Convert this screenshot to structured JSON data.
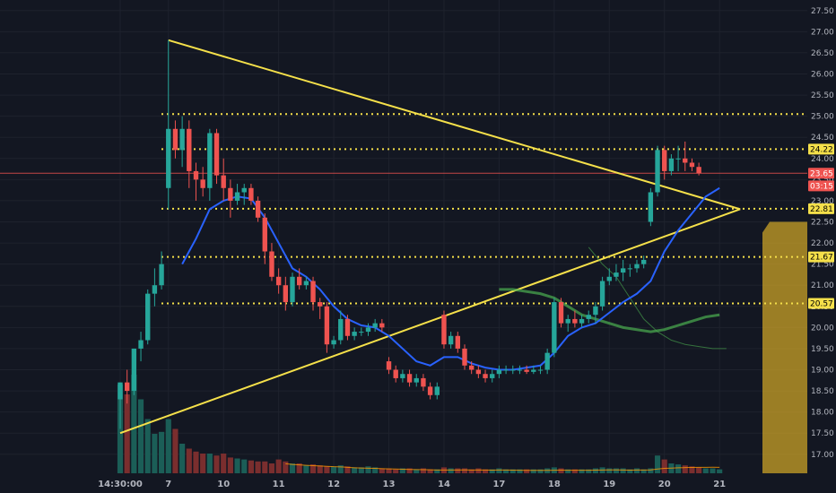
{
  "chart_data": {
    "type": "candlestick",
    "colors": {
      "background": "#131722",
      "grid": "#1e222d",
      "up": "#26a69a",
      "down": "#ef5350",
      "up_volume": "#1b5e57",
      "down_volume": "#7a2e2e",
      "ma_fast": "#2962ff",
      "ma_slow": "#4caf50",
      "trendline": "#f5e04a",
      "level": "#f5e04a",
      "price_line": "#ef5350",
      "volume_ma": "#ff9800"
    },
    "y_axis": {
      "ylim": [
        16.55,
        27.75
      ],
      "ticks": [
        "17.00",
        "17.50",
        "18.00",
        "18.50",
        "19.00",
        "19.50",
        "20.00",
        "20.50",
        "21.00",
        "21.50",
        "22.00",
        "22.50",
        "23.00",
        "23.50",
        "24.00",
        "24.50",
        "25.00",
        "25.50",
        "26.00",
        "26.50",
        "27.00",
        "27.50"
      ]
    },
    "x_axis": {
      "labels": [
        {
          "i": 0,
          "text": "14:30:00"
        },
        {
          "i": 7,
          "text": "7"
        },
        {
          "i": 15,
          "text": "10"
        },
        {
          "i": 23,
          "text": "11"
        },
        {
          "i": 31,
          "text": "12"
        },
        {
          "i": 39,
          "text": "13"
        },
        {
          "i": 47,
          "text": "14"
        },
        {
          "i": 55,
          "text": "17"
        },
        {
          "i": 63,
          "text": "18"
        },
        {
          "i": 71,
          "text": "19"
        },
        {
          "i": 79,
          "text": "20"
        },
        {
          "i": 87,
          "text": "21"
        }
      ]
    },
    "candles": [
      [
        18.3,
        18.7,
        17.6,
        18.7
      ],
      [
        18.7,
        19.0,
        18.2,
        18.5
      ],
      [
        18.5,
        19.5,
        18.4,
        19.5
      ],
      [
        19.5,
        19.9,
        19.2,
        19.7
      ],
      [
        19.7,
        20.9,
        19.6,
        20.8
      ],
      [
        20.8,
        21.4,
        20.5,
        21.0
      ],
      [
        21.0,
        21.8,
        20.9,
        21.5
      ],
      [
        23.3,
        26.8,
        22.8,
        24.7
      ],
      [
        24.7,
        24.9,
        24.0,
        24.2
      ],
      [
        24.2,
        25.0,
        23.8,
        24.7
      ],
      [
        24.7,
        24.9,
        23.3,
        23.7
      ],
      [
        23.7,
        23.9,
        23.0,
        23.5
      ],
      [
        23.5,
        23.8,
        23.1,
        23.3
      ],
      [
        23.3,
        24.7,
        23.0,
        24.6
      ],
      [
        24.6,
        24.7,
        23.4,
        23.6
      ],
      [
        23.6,
        24.0,
        23.0,
        23.3
      ],
      [
        23.3,
        23.5,
        22.6,
        23.0
      ],
      [
        23.0,
        23.4,
        22.9,
        23.2
      ],
      [
        23.2,
        23.4,
        22.9,
        23.3
      ],
      [
        23.3,
        23.4,
        22.9,
        23.0
      ],
      [
        23.0,
        23.1,
        22.5,
        22.6
      ],
      [
        22.6,
        22.7,
        21.5,
        21.8
      ],
      [
        21.8,
        22.0,
        21.1,
        21.2
      ],
      [
        21.2,
        21.4,
        20.8,
        21.0
      ],
      [
        21.0,
        21.2,
        20.4,
        20.6
      ],
      [
        20.6,
        21.3,
        20.5,
        21.2
      ],
      [
        21.2,
        21.4,
        20.9,
        21.0
      ],
      [
        21.0,
        21.2,
        20.9,
        21.1
      ],
      [
        21.1,
        21.2,
        20.4,
        20.6
      ],
      [
        20.6,
        20.7,
        20.2,
        20.5
      ],
      [
        20.5,
        20.6,
        19.4,
        19.6
      ],
      [
        19.6,
        19.8,
        19.5,
        19.7
      ],
      [
        19.7,
        20.4,
        19.6,
        20.2
      ],
      [
        20.2,
        20.3,
        19.7,
        19.8
      ],
      [
        19.8,
        20.0,
        19.7,
        19.9
      ],
      [
        19.9,
        20.0,
        19.8,
        19.9
      ],
      [
        19.9,
        20.1,
        19.8,
        20.0
      ],
      [
        20.0,
        20.2,
        19.9,
        20.1
      ],
      [
        20.1,
        20.2,
        19.9,
        20.0
      ],
      [
        19.2,
        19.3,
        18.9,
        19.0
      ],
      [
        19.0,
        19.1,
        18.7,
        18.8
      ],
      [
        18.8,
        19.0,
        18.7,
        18.9
      ],
      [
        18.9,
        19.0,
        18.6,
        18.7
      ],
      [
        18.7,
        18.9,
        18.6,
        18.8
      ],
      [
        18.8,
        18.9,
        18.5,
        18.6
      ],
      [
        18.6,
        18.7,
        18.3,
        18.4
      ],
      [
        18.4,
        18.7,
        18.3,
        18.6
      ],
      [
        20.3,
        20.4,
        19.5,
        19.6
      ],
      [
        19.6,
        19.9,
        19.5,
        19.8
      ],
      [
        19.8,
        19.9,
        19.4,
        19.5
      ],
      [
        19.5,
        19.6,
        19.0,
        19.1
      ],
      [
        19.1,
        19.2,
        18.9,
        19.0
      ],
      [
        19.0,
        19.1,
        18.8,
        18.9
      ],
      [
        18.9,
        19.0,
        18.7,
        18.8
      ],
      [
        18.8,
        19.0,
        18.7,
        18.9
      ],
      [
        18.9,
        19.1,
        18.8,
        19.0
      ],
      [
        19.0,
        19.1,
        18.9,
        19.0
      ],
      [
        19.0,
        19.1,
        18.9,
        19.0
      ],
      [
        19.0,
        19.1,
        18.9,
        19.0
      ],
      [
        19.0,
        19.1,
        18.9,
        18.95
      ],
      [
        18.95,
        19.1,
        18.9,
        19.0
      ],
      [
        19.0,
        19.1,
        18.9,
        19.0
      ],
      [
        19.0,
        19.5,
        18.9,
        19.4
      ],
      [
        19.4,
        20.7,
        19.3,
        20.6
      ],
      [
        20.6,
        20.7,
        20.0,
        20.1
      ],
      [
        20.1,
        20.3,
        19.9,
        20.2
      ],
      [
        20.2,
        20.4,
        20.0,
        20.1
      ],
      [
        20.1,
        20.3,
        20.0,
        20.2
      ],
      [
        20.2,
        20.4,
        20.1,
        20.3
      ],
      [
        20.3,
        20.6,
        20.1,
        20.5
      ],
      [
        20.5,
        21.2,
        20.4,
        21.1
      ],
      [
        21.1,
        21.4,
        21.0,
        21.2
      ],
      [
        21.2,
        21.5,
        21.1,
        21.3
      ],
      [
        21.3,
        21.6,
        21.1,
        21.4
      ],
      [
        21.4,
        21.5,
        21.2,
        21.4
      ],
      [
        21.4,
        21.6,
        21.3,
        21.5
      ],
      [
        21.5,
        21.7,
        21.4,
        21.6
      ],
      [
        22.5,
        23.3,
        22.4,
        23.2
      ],
      [
        23.2,
        24.3,
        23.1,
        24.2
      ],
      [
        24.2,
        24.3,
        23.5,
        23.7
      ],
      [
        23.7,
        24.1,
        23.6,
        24.0
      ],
      [
        24.0,
        24.3,
        23.7,
        24.0
      ],
      [
        24.0,
        24.4,
        23.7,
        23.9
      ],
      [
        23.9,
        24.0,
        23.7,
        23.8
      ],
      [
        23.8,
        23.9,
        23.6,
        23.65
      ]
    ],
    "volumes": [
      0.9,
      0.8,
      1.0,
      0.75,
      0.55,
      0.4,
      0.42,
      0.55,
      0.45,
      0.3,
      0.25,
      0.22,
      0.2,
      0.2,
      0.18,
      0.2,
      0.16,
      0.15,
      0.14,
      0.13,
      0.12,
      0.12,
      0.1,
      0.14,
      0.12,
      0.1,
      0.1,
      0.08,
      0.09,
      0.08,
      0.07,
      0.07,
      0.08,
      0.07,
      0.06,
      0.06,
      0.07,
      0.06,
      0.05,
      0.05,
      0.04,
      0.05,
      0.05,
      0.04,
      0.05,
      0.04,
      0.04,
      0.06,
      0.05,
      0.05,
      0.05,
      0.04,
      0.05,
      0.04,
      0.04,
      0.05,
      0.04,
      0.04,
      0.04,
      0.04,
      0.04,
      0.04,
      0.05,
      0.06,
      0.05,
      0.04,
      0.04,
      0.04,
      0.04,
      0.05,
      0.06,
      0.05,
      0.05,
      0.05,
      0.04,
      0.05,
      0.04,
      0.05,
      0.18,
      0.14,
      0.1,
      0.09,
      0.08,
      0.07,
      0.06,
      0.05,
      0.05,
      0.04
    ],
    "ma_fast": [
      [
        9,
        21.5
      ],
      [
        11,
        22.1
      ],
      [
        13,
        22.8
      ],
      [
        15,
        23.0
      ],
      [
        17,
        23.1
      ],
      [
        19,
        23.05
      ],
      [
        21,
        22.6
      ],
      [
        23,
        22.0
      ],
      [
        25,
        21.4
      ],
      [
        27,
        21.2
      ],
      [
        29,
        20.9
      ],
      [
        31,
        20.5
      ],
      [
        33,
        20.2
      ],
      [
        35,
        20.05
      ],
      [
        37,
        20.0
      ],
      [
        39,
        19.8
      ],
      [
        41,
        19.5
      ],
      [
        43,
        19.2
      ],
      [
        45,
        19.1
      ],
      [
        47,
        19.3
      ],
      [
        49,
        19.3
      ],
      [
        51,
        19.15
      ],
      [
        53,
        19.05
      ],
      [
        55,
        19.0
      ],
      [
        57,
        19.0
      ],
      [
        59,
        19.05
      ],
      [
        61,
        19.1
      ],
      [
        63,
        19.4
      ],
      [
        65,
        19.8
      ],
      [
        67,
        20.0
      ],
      [
        69,
        20.1
      ],
      [
        71,
        20.35
      ],
      [
        73,
        20.6
      ],
      [
        75,
        20.8
      ],
      [
        77,
        21.1
      ],
      [
        79,
        21.8
      ],
      [
        81,
        22.3
      ],
      [
        83,
        22.7
      ],
      [
        85,
        23.1
      ],
      [
        87,
        23.3
      ]
    ],
    "ma_slow": [
      [
        55,
        20.9
      ],
      [
        57,
        20.9
      ],
      [
        59,
        20.85
      ],
      [
        61,
        20.8
      ],
      [
        63,
        20.7
      ],
      [
        65,
        20.5
      ],
      [
        67,
        20.3
      ],
      [
        69,
        20.2
      ],
      [
        71,
        20.1
      ],
      [
        73,
        20.0
      ],
      [
        75,
        19.95
      ],
      [
        77,
        19.9
      ],
      [
        79,
        19.95
      ],
      [
        81,
        20.05
      ],
      [
        83,
        20.15
      ],
      [
        85,
        20.25
      ],
      [
        87,
        20.3
      ]
    ],
    "ma_slow_faint": [
      [
        68,
        21.9
      ],
      [
        70,
        21.5
      ],
      [
        72,
        21.2
      ],
      [
        74,
        20.7
      ],
      [
        76,
        20.2
      ],
      [
        78,
        19.9
      ],
      [
        80,
        19.7
      ],
      [
        82,
        19.6
      ],
      [
        84,
        19.55
      ],
      [
        86,
        19.5
      ],
      [
        88,
        19.5
      ]
    ],
    "trendlines": [
      {
        "from": [
          7,
          26.8
        ],
        "to": [
          90,
          22.8
        ]
      },
      {
        "from": [
          0,
          17.5
        ],
        "to": [
          90,
          22.8
        ]
      }
    ],
    "levels": [
      25.05,
      24.22,
      22.81,
      21.67,
      20.57
    ],
    "price_line": 23.65,
    "price_badges": [
      {
        "value": 24.22,
        "text": "24.22",
        "style": "level"
      },
      {
        "value": 23.65,
        "text": "23.65",
        "style": "price"
      },
      {
        "value": 23.35,
        "text": "03:15",
        "style": "price"
      },
      {
        "value": 22.81,
        "text": "22.81",
        "style": "level"
      },
      {
        "value": 21.67,
        "text": "21.67",
        "style": "level"
      },
      {
        "value": 20.57,
        "text": "20.57",
        "style": "level"
      }
    ],
    "shaded_zone": {
      "y_top": 22.5,
      "y_bottom": 16.55
    }
  }
}
